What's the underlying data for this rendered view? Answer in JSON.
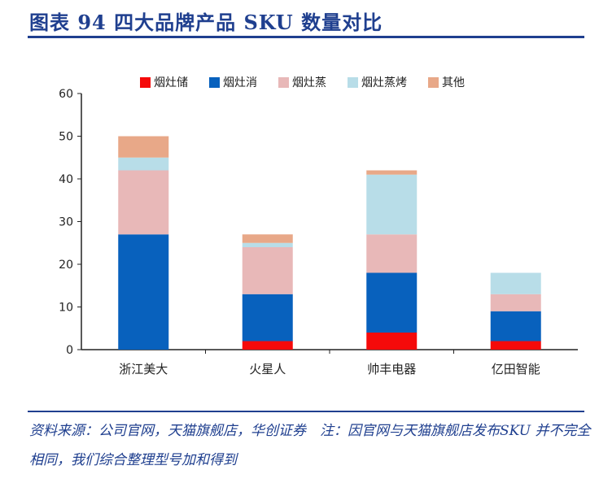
{
  "title": "图表 94 四大品牌产品 SKU 数量对比",
  "footer": "资料来源：公司官网，天猫旗舰店，华创证券　注：因官网与天猫旗舰店发布SKU 并不完全相同，我们综合整理型号加和得到",
  "chart_data": {
    "type": "bar",
    "stacked": true,
    "categories": [
      "浙江美大",
      "火星人",
      "帅丰电器",
      "亿田智能"
    ],
    "ylim": [
      0,
      60
    ],
    "yticks": [
      0,
      10,
      20,
      30,
      40,
      50,
      60
    ],
    "legend_position": "top",
    "series": [
      {
        "name": "烟灶储",
        "color": "#f50a0a",
        "values": [
          0,
          2,
          4,
          2
        ]
      },
      {
        "name": "烟灶消",
        "color": "#0861bd",
        "values": [
          27,
          11,
          14,
          7
        ]
      },
      {
        "name": "烟灶蒸",
        "color": "#e8b8b8",
        "values": [
          15,
          11,
          9,
          4
        ]
      },
      {
        "name": "烟灶蒸烤",
        "color": "#b8dde8",
        "values": [
          3,
          1,
          14,
          5
        ]
      },
      {
        "name": "其他",
        "color": "#e8a888",
        "values": [
          5,
          2,
          1,
          0
        ]
      }
    ]
  }
}
